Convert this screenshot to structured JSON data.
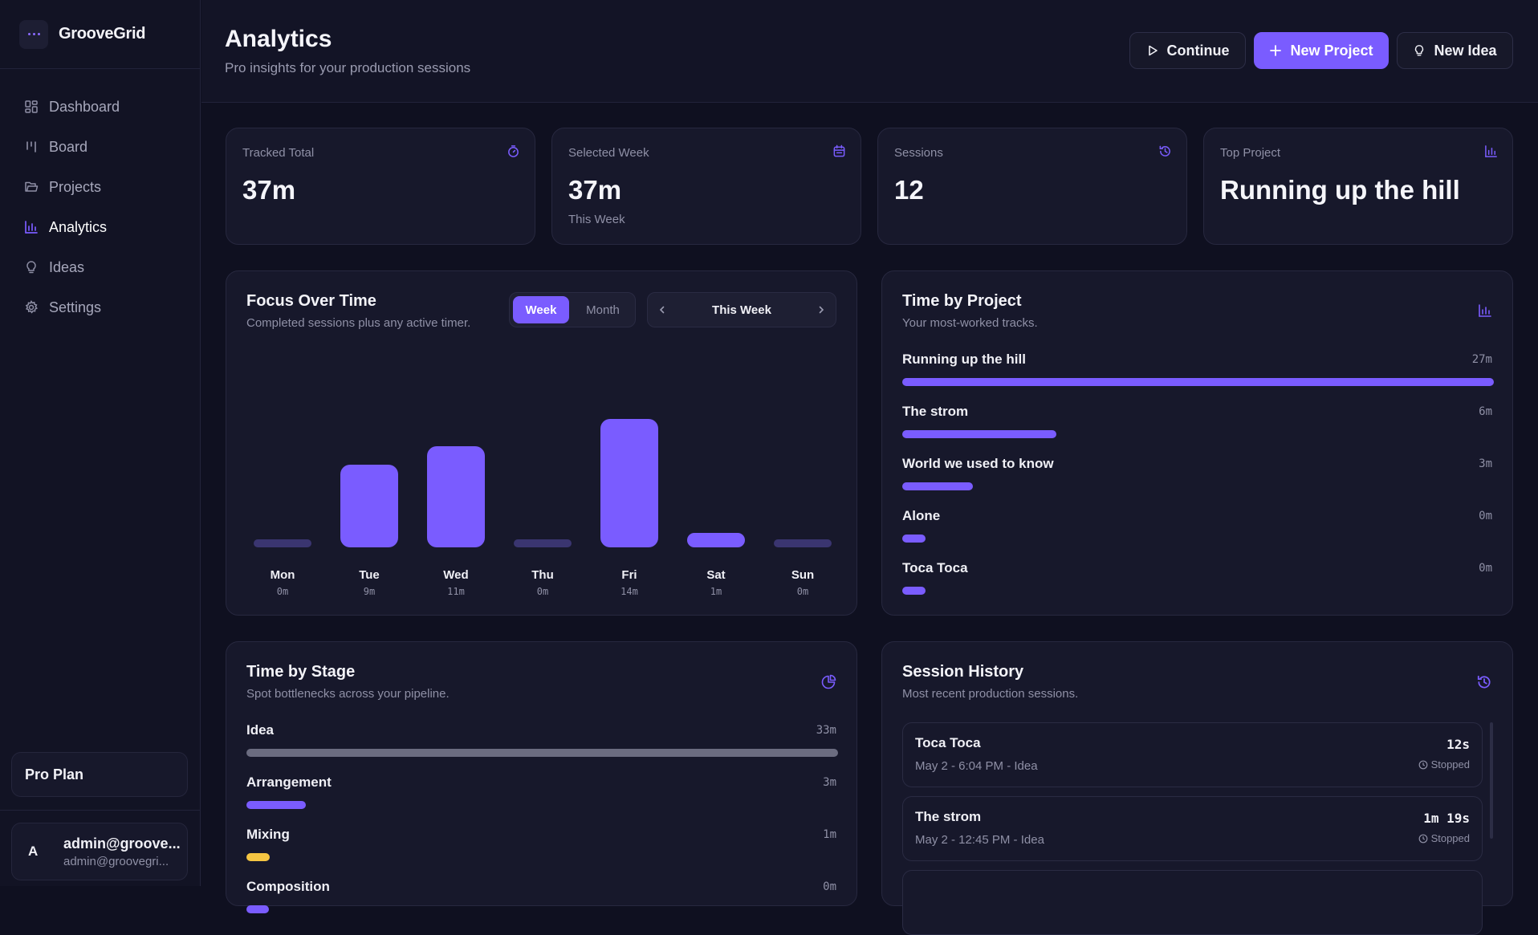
{
  "app": {
    "name": "GrooveGrid"
  },
  "sidebar": {
    "items": [
      {
        "label": "Dashboard",
        "icon": "dashboard-icon"
      },
      {
        "label": "Board",
        "icon": "board-icon"
      },
      {
        "label": "Projects",
        "icon": "folder-icon"
      },
      {
        "label": "Analytics",
        "icon": "bar-chart-icon",
        "active": true
      },
      {
        "label": "Ideas",
        "icon": "lightbulb-icon"
      },
      {
        "label": "Settings",
        "icon": "gear-icon"
      }
    ],
    "plan": "Pro Plan",
    "user": {
      "initial": "A",
      "name": "admin@groove...",
      "email": "admin@groovegri..."
    }
  },
  "header": {
    "title": "Analytics",
    "subtitle": "Pro insights for your production sessions",
    "buttons": {
      "continue": "Continue",
      "new_project": "New Project",
      "new_idea": "New Idea"
    }
  },
  "stats": [
    {
      "label": "Tracked Total",
      "value": "37m",
      "sub": "",
      "icon": "timer-icon"
    },
    {
      "label": "Selected Week",
      "value": "37m",
      "sub": "This Week",
      "icon": "calendar-icon"
    },
    {
      "label": "Sessions",
      "value": "12",
      "sub": "",
      "icon": "history-icon"
    },
    {
      "label": "Top Project",
      "value": "Running up the hill",
      "sub": "",
      "icon": "bar-chart-icon"
    }
  ],
  "focus": {
    "title": "Focus Over Time",
    "subtitle": "Completed sessions plus any active timer.",
    "toggle": {
      "week": "Week",
      "month": "Month",
      "selected": "Week"
    },
    "period": "This Week"
  },
  "chart_data": {
    "type": "bar",
    "categories": [
      "Mon",
      "Tue",
      "Wed",
      "Thu",
      "Fri",
      "Sat",
      "Sun"
    ],
    "values": [
      0,
      9,
      11,
      0,
      14,
      1,
      0
    ],
    "value_labels": [
      "0m",
      "9m",
      "11m",
      "0m",
      "14m",
      "1m",
      "0m"
    ],
    "ylim": [
      0,
      14
    ],
    "color": "#7a5cff"
  },
  "projects": {
    "title": "Time by Project",
    "subtitle": "Your most-worked tracks.",
    "rows": [
      {
        "name": "Running up the hill",
        "value": "27m",
        "fraction": 1.0
      },
      {
        "name": "The strom",
        "value": "6m",
        "fraction": 0.26
      },
      {
        "name": "World we used to know",
        "value": "3m",
        "fraction": 0.12
      },
      {
        "name": "Alone",
        "value": "0m",
        "fraction": 0.04
      },
      {
        "name": "Toca Toca",
        "value": "0m",
        "fraction": 0.04
      }
    ],
    "bar_color": "#7a5cff"
  },
  "stages": {
    "title": "Time by Stage",
    "subtitle": "Spot bottlenecks across your pipeline.",
    "rows": [
      {
        "name": "Idea",
        "value": "33m",
        "fraction": 1.0,
        "color": "#6b6c80"
      },
      {
        "name": "Arrangement",
        "value": "3m",
        "fraction": 0.1,
        "color": "#7a5cff"
      },
      {
        "name": "Mixing",
        "value": "1m",
        "fraction": 0.04,
        "color": "#f5c542"
      },
      {
        "name": "Composition",
        "value": "0m",
        "fraction": 0.02,
        "color": "#7a5cff"
      }
    ]
  },
  "history": {
    "title": "Session History",
    "subtitle": "Most recent production sessions.",
    "sessions": [
      {
        "name": "Toca Toca",
        "meta": "May 2 - 6:04 PM - Idea",
        "duration": "12s",
        "status": "Stopped"
      },
      {
        "name": "The strom",
        "meta": "May 2 - 12:45 PM - Idea",
        "duration": "1m 19s",
        "status": "Stopped"
      }
    ]
  }
}
